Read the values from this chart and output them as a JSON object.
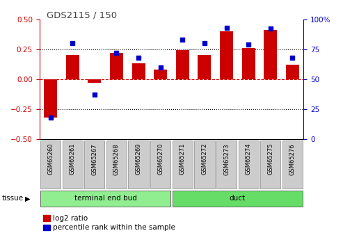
{
  "title": "GDS2115 / 150",
  "samples": [
    "GSM65260",
    "GSM65261",
    "GSM65267",
    "GSM65268",
    "GSM65269",
    "GSM65270",
    "GSM65271",
    "GSM65272",
    "GSM65273",
    "GSM65274",
    "GSM65275",
    "GSM65276"
  ],
  "log2_ratio": [
    -0.32,
    0.2,
    -0.03,
    0.22,
    0.13,
    0.08,
    0.24,
    0.2,
    0.4,
    0.26,
    0.41,
    0.12
  ],
  "percentile": [
    18,
    80,
    37,
    72,
    68,
    60,
    83,
    80,
    93,
    79,
    92,
    68
  ],
  "groups": [
    {
      "label": "terminal end bud",
      "start": 0,
      "end": 6,
      "color": "#90EE90"
    },
    {
      "label": "duct",
      "start": 6,
      "end": 12,
      "color": "#66DD66"
    }
  ],
  "tissue_label": "tissue",
  "ylim_left": [
    -0.5,
    0.5
  ],
  "ylim_right": [
    0,
    100
  ],
  "yticks_left": [
    -0.5,
    -0.25,
    0,
    0.25,
    0.5
  ],
  "yticks_right": [
    0,
    25,
    50,
    75,
    100
  ],
  "bar_color": "#CC0000",
  "dot_color": "#0000CC",
  "dashed_zero_color": "#CC0000",
  "bg_color": "#FFFFFF",
  "plot_bg": "#FFFFFF",
  "tick_label_bg": "#CCCCCC",
  "title_color": "#444444",
  "left_axis_color": "#CC0000",
  "right_axis_color": "#0000CC",
  "legend_bar_label": "log2 ratio",
  "legend_dot_label": "percentile rank within the sample"
}
